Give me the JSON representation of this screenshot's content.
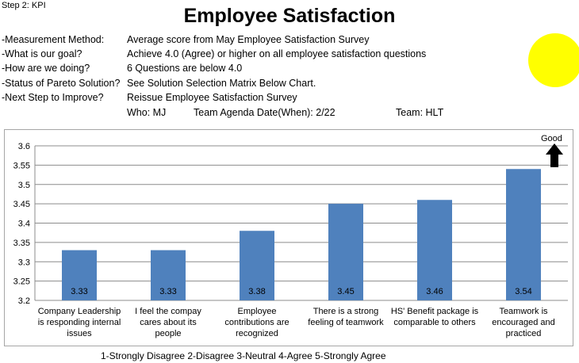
{
  "step": "Step 2: KPI",
  "title": "Employee Satisfaction",
  "status_color": "#ffff00",
  "info": [
    {
      "label": "-Measurement Method:",
      "value": "Average score from May Employee Satisfaction Survey"
    },
    {
      "label": "-What is our goal?",
      "value": "Achieve 4.0 (Agree) or higher on all employee satisfaction questions"
    },
    {
      "label": "-How are we doing?",
      "value": "6 Questions are below 4.0"
    },
    {
      "label": "-Status of Pareto Solution?",
      "value": "See Solution Selection Matrix Below Chart."
    },
    {
      "label": "-Next Step to Improve?",
      "value": "Reissue Employee Satisfaction Survey"
    }
  ],
  "who": "Who: MJ",
  "agenda": "Team Agenda Date(When): 2/22",
  "team": "Team: HLT",
  "good_label": "Good",
  "scale_note": "1-Strongly Disagree 2-Disagree 3-Neutral 4-Agree 5-Strongly Agree",
  "chart_data": {
    "type": "bar",
    "categories": [
      [
        "Company Leadership",
        "is responding internal",
        "issues"
      ],
      [
        "I feel the compay",
        "cares about its",
        "people"
      ],
      [
        "Employee",
        "contributions are",
        "recognized"
      ],
      [
        "There is a strong",
        "feeling of teamwork"
      ],
      [
        "HS' Benefit package is",
        "comparable to others"
      ],
      [
        "Teamwork is",
        "encouraged and",
        "practiced"
      ]
    ],
    "values": [
      3.33,
      3.33,
      3.38,
      3.45,
      3.46,
      3.54
    ],
    "data_labels": [
      "3.33",
      "3.33",
      "3.38",
      "3.45",
      "3.46",
      "3.54"
    ],
    "ylim": [
      3.2,
      3.6
    ],
    "yticks": [
      "3.2",
      "3.25",
      "3.3",
      "3.35",
      "3.4",
      "3.45",
      "3.5",
      "3.55",
      "3.6"
    ],
    "bar_color": "#4f81bd",
    "grid": true,
    "legend": "none"
  }
}
